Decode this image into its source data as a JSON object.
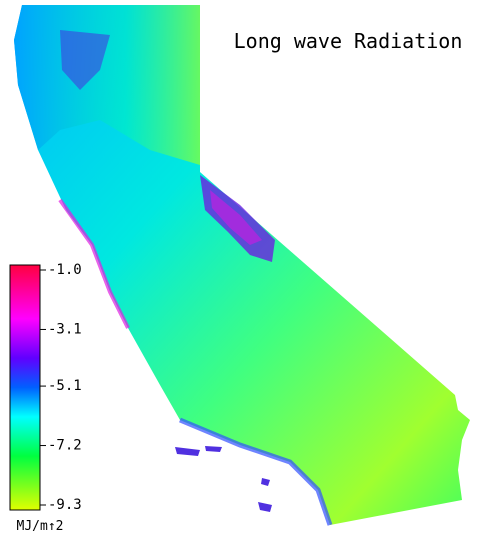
{
  "title": "Long wave Radiation",
  "colorbar": {
    "ticks": [
      {
        "value": -1.0,
        "label": "-1.0"
      },
      {
        "value": -3.1,
        "label": "-3.1"
      },
      {
        "value": -5.1,
        "label": "-5.1"
      },
      {
        "value": -7.2,
        "label": "-7.2"
      },
      {
        "value": -9.3,
        "label": "-9.3"
      }
    ],
    "unit": "MJ/m↑2"
  }
}
